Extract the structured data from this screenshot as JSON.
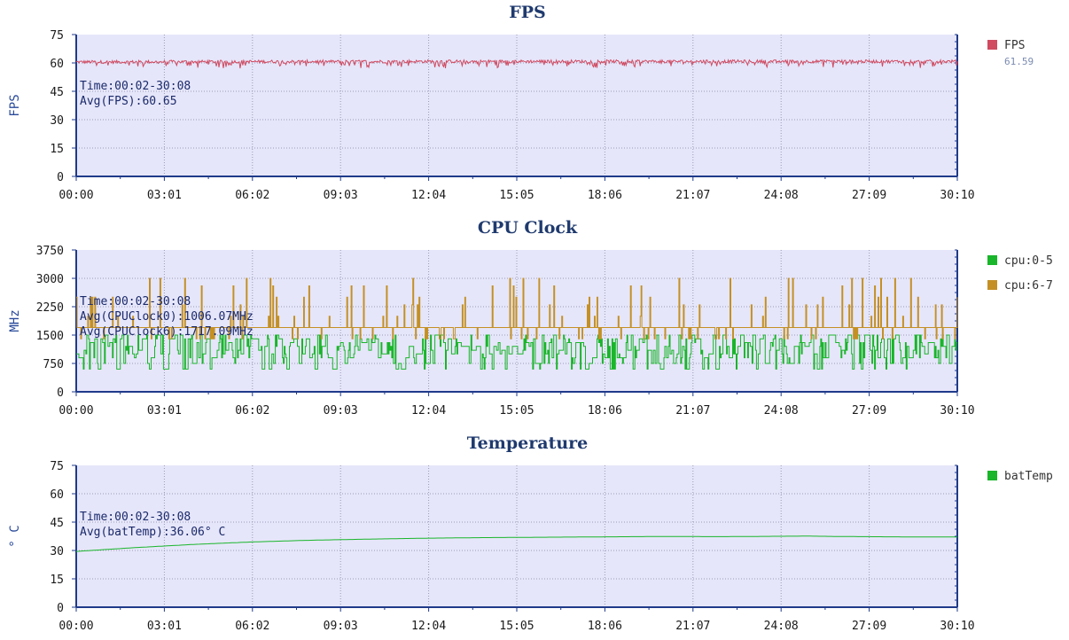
{
  "colors": {
    "plot_bg": "#e6e6fa",
    "axis": "#1f3a8a",
    "grid": "#9a9ab8",
    "title": "#1f3a6e",
    "fps": "#d04a60",
    "cpu0": "#19b52a",
    "cpu6": "#c49024",
    "temp": "#19b52a"
  },
  "chart_data": [
    {
      "type": "line",
      "title": "FPS",
      "ylabel": "FPS",
      "ylim": [
        0,
        75
      ],
      "yticks": [
        "0",
        "15",
        "30",
        "45",
        "60",
        "75"
      ],
      "xticks": [
        "00:00",
        "03:01",
        "06:02",
        "09:03",
        "12:04",
        "15:05",
        "18:06",
        "21:07",
        "24:08",
        "27:09",
        "30:10"
      ],
      "grid": true,
      "legend_position": "right",
      "annotation": [
        "Time:00:02-30:08",
        "Avg(FPS):60.65"
      ],
      "series": [
        {
          "name": "FPS",
          "legend_value": "61.59",
          "color": "#d04a60",
          "base": 60.8,
          "noise": 1.6,
          "dips": 0.12,
          "points": [
            [
              0,
              60.5
            ],
            [
              30,
              60.6
            ],
            [
              60,
              60.7
            ],
            [
              90,
              60.7
            ],
            [
              120,
              60.8
            ],
            [
              150,
              60.8
            ],
            [
              181,
              60.8
            ]
          ]
        }
      ]
    },
    {
      "type": "line",
      "title": "CPU Clock",
      "ylabel": "MHz",
      "ylim": [
        0,
        3750
      ],
      "yticks": [
        "0",
        "750",
        "1500",
        "2250",
        "3000",
        "3750"
      ],
      "xticks": [
        "00:00",
        "03:01",
        "06:02",
        "09:03",
        "12:04",
        "15:05",
        "18:06",
        "21:07",
        "24:08",
        "27:09",
        "30:10"
      ],
      "grid": true,
      "legend_position": "right",
      "annotation": [
        "Time:00:02-30:08",
        "Avg(CPUClock0):1006.07MHz",
        "Avg(CPUClock6):1717.09MHz"
      ],
      "series": [
        {
          "name": "cpu:0-5",
          "color": "#19b52a",
          "kind": "cpu_little",
          "levels": [
            600,
            750,
            900,
            1000,
            1100,
            1200,
            1300,
            1400,
            1500
          ]
        },
        {
          "name": "cpu:6-7",
          "color": "#c49024",
          "kind": "cpu_big",
          "base": 1700,
          "low": 1400,
          "spikes": [
            2000,
            2300,
            2500,
            2800,
            3000
          ]
        }
      ]
    },
    {
      "type": "line",
      "title": "Temperature",
      "ylabel": "° C",
      "ylim": [
        0,
        75
      ],
      "yticks": [
        "0",
        "15",
        "30",
        "45",
        "60",
        "75"
      ],
      "xticks": [
        "00:00",
        "03:01",
        "06:02",
        "09:03",
        "12:04",
        "15:05",
        "18:06",
        "21:07",
        "24:08",
        "27:09",
        "30:10"
      ],
      "grid": true,
      "legend_position": "right",
      "annotation": [
        "Time:00:02-30:08",
        "Avg(batTemp):36.06° C"
      ],
      "series": [
        {
          "name": "batTemp",
          "color": "#19b52a",
          "points": [
            [
              0,
              29.5
            ],
            [
              20,
              31.5
            ],
            [
              40,
              33.2
            ],
            [
              60,
              34.5
            ],
            [
              80,
              35.4
            ],
            [
              100,
              36.0
            ],
            [
              120,
              36.5
            ],
            [
              140,
              36.8
            ],
            [
              160,
              37.0
            ],
            [
              181,
              37.2
            ],
            [
              200,
              37.4
            ],
            [
              220,
              37.3
            ],
            [
              240,
              37.5
            ],
            [
              250,
              37.6
            ],
            [
              260,
              37.4
            ],
            [
              280,
              37.2
            ],
            [
              301,
              37.1
            ]
          ]
        }
      ]
    }
  ]
}
